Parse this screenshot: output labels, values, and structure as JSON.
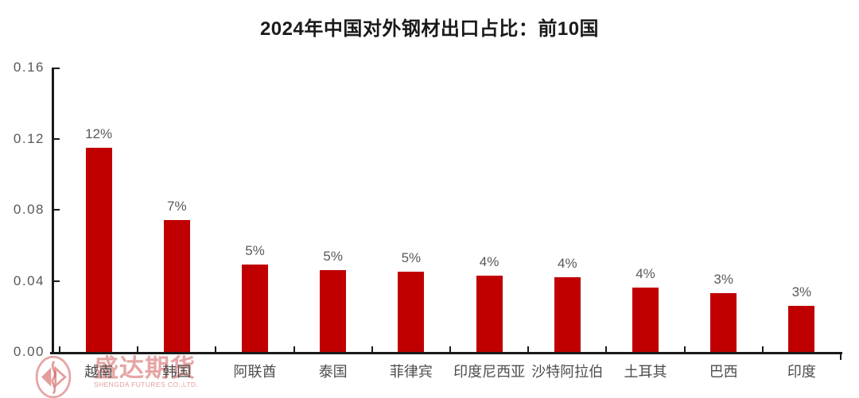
{
  "title": "2024年中国对外钢材出口占比：前10国",
  "watermark": {
    "name": "盛达期货",
    "subtitle": "SHENGDA FUTURES CO.,LTD.",
    "logo_icon": "shengda-futures-logo",
    "color": "#cd4b4b"
  },
  "chart_data": {
    "type": "bar",
    "title": "2024年中国对外钢材出口占比：前10国",
    "categories": [
      "越南",
      "韩国",
      "阿联酋",
      "泰国",
      "菲律宾",
      "印度尼西亚",
      "沙特阿拉伯",
      "土耳其",
      "巴西",
      "印度"
    ],
    "values": [
      0.115,
      0.074,
      0.049,
      0.046,
      0.045,
      0.043,
      0.042,
      0.036,
      0.033,
      0.026
    ],
    "data_labels": [
      "12%",
      "7%",
      "5%",
      "5%",
      "5%",
      "4%",
      "4%",
      "4%",
      "3%",
      "3%"
    ],
    "bar_color": "#c00000",
    "value_label_color": "#595959",
    "xlabel": "",
    "ylabel": "",
    "ylim": [
      0,
      0.16
    ],
    "yticks": [
      "0.16",
      "0.12",
      "0.08",
      "0.04",
      "0.00"
    ],
    "grid": false,
    "legend": false
  }
}
